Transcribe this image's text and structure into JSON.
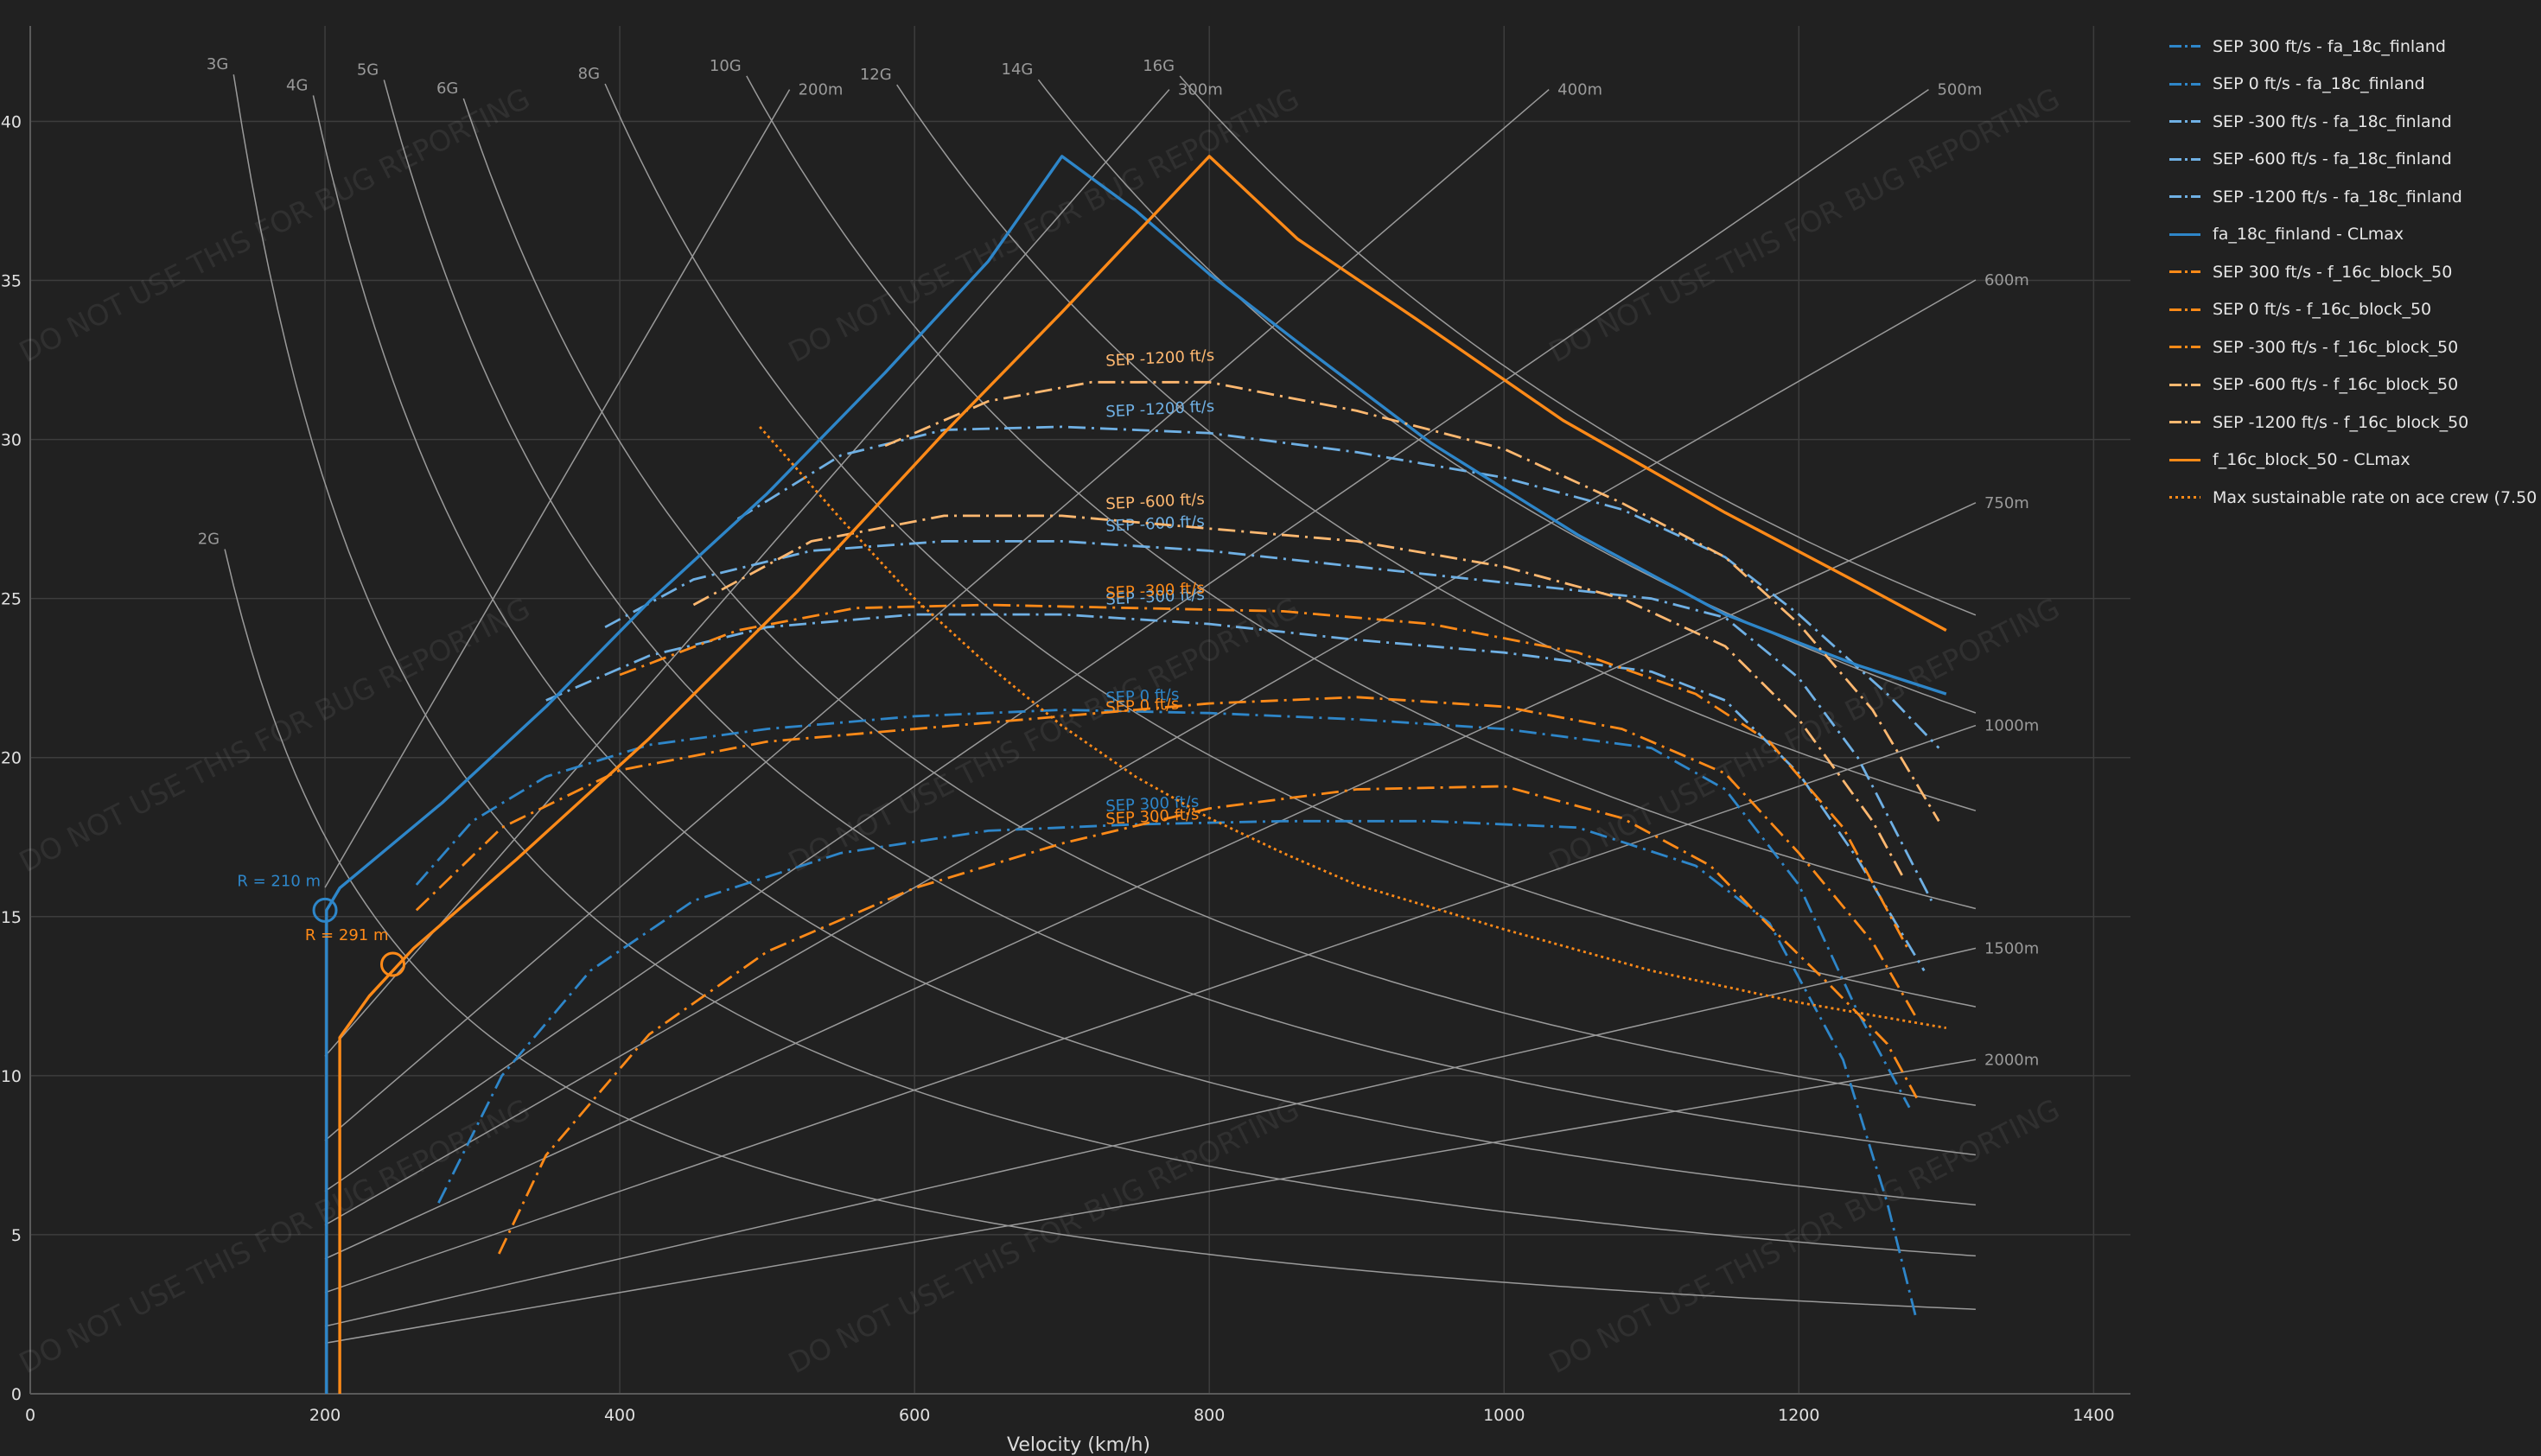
{
  "chart_data": {
    "type": "line",
    "title": "",
    "xlabel": "Velocity (km/h)",
    "ylabel": "",
    "xlim": [
      0,
      1425
    ],
    "ylim": [
      0,
      43
    ],
    "x_ticks": [
      0,
      200,
      400,
      600,
      800,
      1000,
      1200,
      1400
    ],
    "y_ticks": [
      0,
      5,
      10,
      15,
      20,
      25,
      30,
      35,
      40
    ],
    "grid": true,
    "legend_position": "right",
    "watermark": "DO NOT USE THIS FOR BUG REPORTING",
    "colors": {
      "blue": "#2e86c9",
      "light_blue": "#6fb0e4",
      "orange": "#ff8a18",
      "light_orange": "#ffb870",
      "grid": "#3d3d3d",
      "guides": "#9a9a9a"
    },
    "series": [
      {
        "name": "SEP 300 ft/s - fa_18c_finland",
        "color": "#2e86c9",
        "dash": "dashdot",
        "label": "SEP 300 ft/s",
        "x": [
          277,
          320,
          380,
          450,
          550,
          650,
          750,
          850,
          950,
          1050,
          1130,
          1180,
          1230,
          1260,
          1280
        ],
        "y": [
          6,
          10,
          13.3,
          15.5,
          17.0,
          17.7,
          17.9,
          18.0,
          18.0,
          17.8,
          16.6,
          14.8,
          10.5,
          6.0,
          2.3
        ],
        "label_at": [
          730,
          18.2
        ]
      },
      {
        "name": "SEP 0 ft/s - fa_18c_finland",
        "color": "#2e86c9",
        "dash": "dashdot",
        "label": "SEP 0 ft/s",
        "x": [
          262,
          300,
          350,
          420,
          500,
          600,
          700,
          800,
          900,
          1000,
          1100,
          1150,
          1200,
          1240,
          1275
        ],
        "y": [
          16.0,
          18.0,
          19.4,
          20.4,
          20.9,
          21.3,
          21.5,
          21.4,
          21.2,
          20.9,
          20.3,
          19.0,
          16.0,
          12.0,
          9.0
        ],
        "label_at": [
          730,
          21.6
        ]
      },
      {
        "name": "SEP -300 ft/s - fa_18c_finland",
        "color": "#6fb0e4",
        "dash": "dashdot",
        "label": "SEP -300 ft/s",
        "x": [
          350,
          420,
          500,
          600,
          700,
          800,
          900,
          1000,
          1100,
          1150,
          1200,
          1240,
          1285
        ],
        "y": [
          21.8,
          23.2,
          24.1,
          24.5,
          24.5,
          24.2,
          23.7,
          23.3,
          22.7,
          21.8,
          19.5,
          16.8,
          13.3
        ],
        "label_at": [
          730,
          24.7
        ]
      },
      {
        "name": "SEP -600 ft/s - fa_18c_finland",
        "color": "#6fb0e4",
        "dash": "dashdot",
        "label": "SEP -600 ft/s",
        "x": [
          390,
          450,
          530,
          620,
          700,
          800,
          900,
          1000,
          1100,
          1150,
          1200,
          1240,
          1290
        ],
        "y": [
          24.1,
          25.6,
          26.5,
          26.8,
          26.8,
          26.5,
          26.0,
          25.5,
          25.0,
          24.4,
          22.5,
          20.0,
          15.5
        ],
        "label_at": [
          730,
          27.0
        ]
      },
      {
        "name": "SEP -1200 ft/s - fa_18c_finland",
        "color": "#6fb0e4",
        "dash": "dashdot",
        "label": "SEP -1200 ft/s",
        "x": [
          480,
          550,
          620,
          700,
          800,
          900,
          1000,
          1080,
          1150,
          1200,
          1260,
          1295
        ],
        "y": [
          27.5,
          29.5,
          30.3,
          30.4,
          30.2,
          29.6,
          28.8,
          27.8,
          26.3,
          24.5,
          22.0,
          20.3
        ],
        "label_at": [
          730,
          30.6
        ]
      },
      {
        "name": "fa_18c_finland - CLmax",
        "color": "#2e86c9",
        "dash": "solid",
        "x": [
          201,
          201,
          210,
          280,
          350,
          420,
          500,
          580,
          650,
          700,
          750,
          800,
          870,
          950,
          1050,
          1150,
          1240,
          1300
        ],
        "y": [
          0,
          15.2,
          15.9,
          18.6,
          21.6,
          24.9,
          28.3,
          32.1,
          35.6,
          38.9,
          37.2,
          35.2,
          32.7,
          29.9,
          27.0,
          24.5,
          22.9,
          22.0
        ]
      },
      {
        "name": "SEP 300 ft/s - f_16c_block_50",
        "color": "#ff8a18",
        "dash": "dashdot",
        "label": "SEP 300 ft/s",
        "x": [
          318,
          350,
          420,
          500,
          600,
          700,
          800,
          900,
          1000,
          1080,
          1140,
          1180,
          1220,
          1260,
          1280
        ],
        "y": [
          4.4,
          7.5,
          11.3,
          13.9,
          15.9,
          17.3,
          18.4,
          19.0,
          19.1,
          18.1,
          16.6,
          14.7,
          12.9,
          11.0,
          9.3
        ],
        "label_at": [
          730,
          17.8
        ]
      },
      {
        "name": "SEP 0 ft/s - f_16c_block_50",
        "color": "#ff8a18",
        "dash": "dashdot",
        "label": "SEP 0 ft/s",
        "x": [
          262,
          320,
          400,
          500,
          600,
          700,
          800,
          900,
          1000,
          1080,
          1150,
          1200,
          1250,
          1280
        ],
        "y": [
          15.2,
          17.8,
          19.6,
          20.5,
          20.9,
          21.3,
          21.7,
          21.9,
          21.6,
          20.9,
          19.5,
          17.0,
          14.2,
          11.8
        ],
        "label_at": [
          730,
          21.3
        ]
      },
      {
        "name": "SEP -300 ft/s - f_16c_block_50",
        "color": "#ff8a18",
        "dash": "dashdot",
        "label": "SEP -300 ft/s",
        "x": [
          400,
          480,
          560,
          650,
          750,
          850,
          950,
          1050,
          1130,
          1180,
          1230,
          1275
        ],
        "y": [
          22.6,
          24.0,
          24.7,
          24.8,
          24.7,
          24.6,
          24.2,
          23.3,
          22.0,
          20.5,
          17.8,
          13.9
        ],
        "label_at": [
          730,
          24.9
        ]
      },
      {
        "name": "SEP -600 ft/s - f_16c_block_50",
        "color": "#ffb870",
        "dash": "dashdot",
        "label": "SEP -600 ft/s",
        "x": [
          450,
          530,
          620,
          700,
          800,
          900,
          1000,
          1080,
          1150,
          1200,
          1250,
          1270
        ],
        "y": [
          24.8,
          26.8,
          27.6,
          27.6,
          27.2,
          26.8,
          26.0,
          25.0,
          23.5,
          21.2,
          18.0,
          16.3
        ],
        "label_at": [
          730,
          27.7
        ]
      },
      {
        "name": "SEP -1200 ft/s - f_16c_block_50",
        "color": "#ffb870",
        "dash": "dashdot",
        "label": "SEP -1200 ft/s",
        "x": [
          580,
          650,
          720,
          800,
          900,
          1000,
          1080,
          1150,
          1200,
          1250,
          1295
        ],
        "y": [
          29.8,
          31.2,
          31.8,
          31.8,
          30.9,
          29.7,
          28.0,
          26.3,
          24.2,
          21.5,
          18.0
        ],
        "label_at": [
          730,
          32.2
        ]
      },
      {
        "name": "f_16c_block_50 - CLmax",
        "color": "#ff8a18",
        "dash": "solid",
        "x": [
          210,
          210,
          230,
          260,
          330,
          420,
          520,
          620,
          700,
          800,
          860,
          940,
          1040,
          1150,
          1240,
          1300
        ],
        "y": [
          0,
          11.2,
          12.5,
          14.0,
          16.8,
          20.6,
          25.2,
          30.2,
          34.0,
          38.9,
          36.3,
          33.8,
          30.6,
          27.7,
          25.5,
          24.0
        ]
      },
      {
        "name": "Max sustainable rate on ace crew (7.50",
        "color": "#ff8a18",
        "dash": "dotted",
        "x": [
          495,
          550,
          600,
          650,
          700,
          750,
          800,
          850,
          900,
          1000,
          1100,
          1200,
          1300
        ],
        "y": [
          30.4,
          27.5,
          25.0,
          22.9,
          21.0,
          19.4,
          18.1,
          17.0,
          16.0,
          14.6,
          13.3,
          12.3,
          11.5
        ]
      }
    ],
    "g_labels": [
      "2G",
      "3G",
      "4G",
      "5G",
      "6G",
      "8G",
      "10G",
      "12G",
      "14G",
      "16G"
    ],
    "g_values": [
      2,
      3,
      4,
      5,
      6,
      8,
      10,
      12,
      14,
      16
    ],
    "radius_labels": [
      "200m",
      "300m",
      "400m",
      "500m",
      "600m",
      "750m",
      "1000m",
      "1500m",
      "2000m"
    ],
    "radius_values": [
      200,
      300,
      400,
      500,
      600,
      750,
      1000,
      1500,
      2000
    ],
    "markers": [
      {
        "label": "R = 210 m",
        "color": "#2e86c9",
        "x": 200,
        "y": 15.2
      },
      {
        "label": "R = 291 m",
        "color": "#ff8a18",
        "x": 246,
        "y": 13.5
      }
    ]
  }
}
